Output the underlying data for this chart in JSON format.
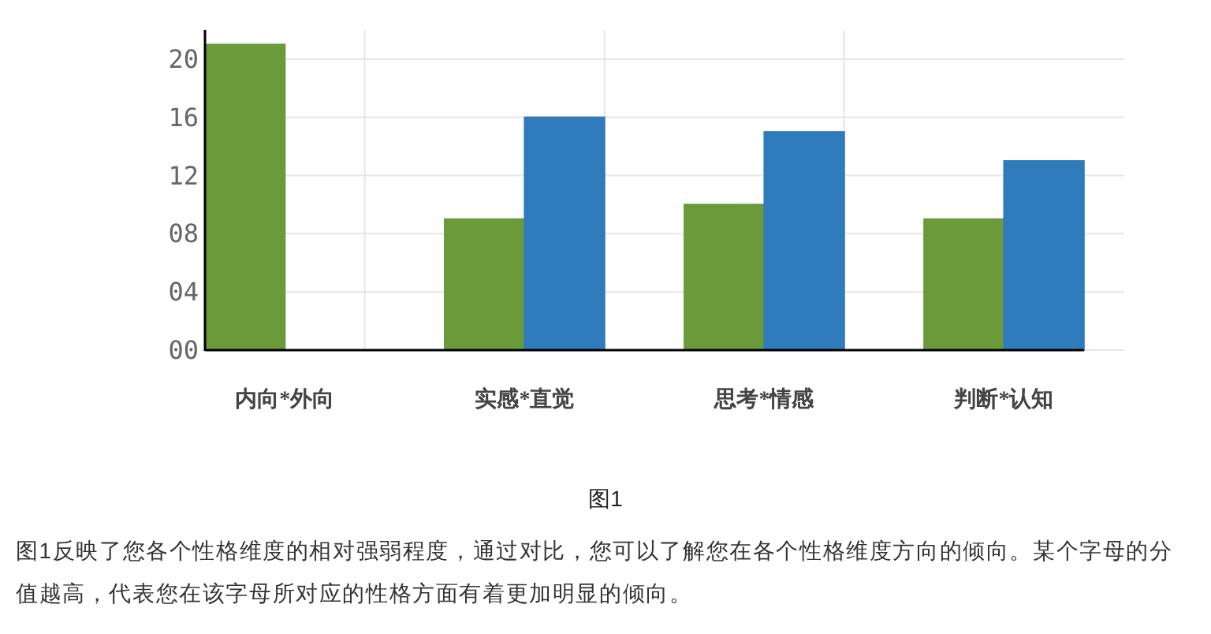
{
  "chart_data": {
    "type": "bar",
    "categories": [
      "内向*外向",
      "实感*直觉",
      "思考*情感",
      "判断*认知"
    ],
    "series": [
      {
        "color": "#6b9a3a",
        "values": [
          21,
          9,
          10,
          9
        ]
      },
      {
        "color": "#2f7bbb",
        "values": [
          0,
          16,
          15,
          13
        ]
      }
    ],
    "ylim": [
      0,
      22
    ],
    "yticks": [
      {
        "value": 0,
        "label": "00"
      },
      {
        "value": 4,
        "label": "04"
      },
      {
        "value": 8,
        "label": "08"
      },
      12,
      16,
      20
    ],
    "grid": true,
    "annotations": [
      "图1",
      "图1反映了您各个性格维度的相对强弱程度，通过对比，您可以了解您在各个性格维度方向的倾向。某个字母的分值越高，代表您在该字母所对应的性格方面有着更加明显的倾向。"
    ]
  }
}
